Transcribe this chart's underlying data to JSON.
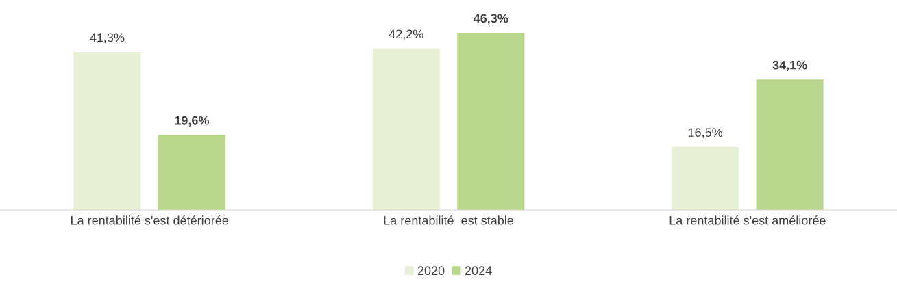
{
  "chart_data": {
    "type": "bar",
    "categories": [
      "La rentabilité s'est détériorée",
      "La rentabilité  est stable",
      "La rentabilité s'est améliorée"
    ],
    "series": [
      {
        "name": "2020",
        "color": "#e6f0d7",
        "values": [
          41.3,
          42.2,
          16.5
        ],
        "value_labels": [
          "41,3%",
          "42,2%",
          "16,5%"
        ]
      },
      {
        "name": "2024",
        "color": "#b9d78c",
        "values": [
          19.6,
          46.3,
          34.1
        ],
        "value_labels": [
          "19,6%",
          "46,3%",
          "34,1%"
        ]
      }
    ],
    "legend": "bottom",
    "grid": false
  }
}
